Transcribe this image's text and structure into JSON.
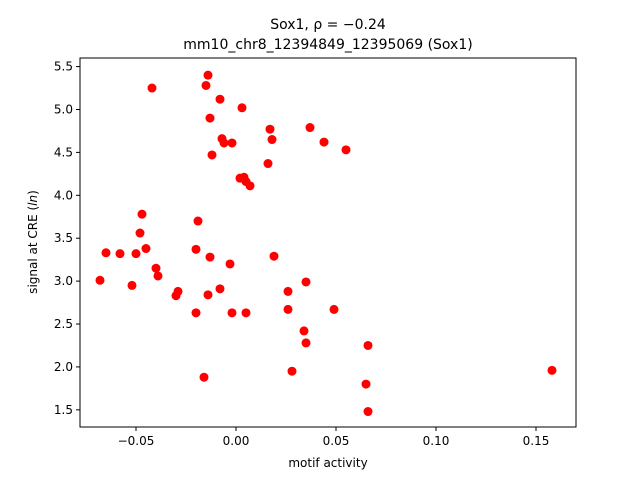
{
  "chart_data": {
    "type": "scatter",
    "title_line1": "Sox1, ρ = −0.24",
    "title_line2": "mm10_chr8_12394849_12395069 (Sox1)",
    "xlabel": "motif activity",
    "ylabel": "signal at CRE (ln)",
    "xlim": [
      -0.078,
      0.17
    ],
    "ylim": [
      1.3,
      5.6
    ],
    "xticks": [
      -0.05,
      0.0,
      0.05,
      0.1,
      0.15
    ],
    "xtick_labels": [
      "−0.05",
      "0.00",
      "0.05",
      "0.10",
      "0.15"
    ],
    "yticks": [
      1.5,
      2.0,
      2.5,
      3.0,
      3.5,
      4.0,
      4.5,
      5.0,
      5.5
    ],
    "ytick_labels": [
      "1.5",
      "2.0",
      "2.5",
      "3.0",
      "3.5",
      "4.0",
      "4.5",
      "5.0",
      "5.5"
    ],
    "grid": false,
    "marker_color": "#ff0000",
    "x": [
      -0.014,
      -0.015,
      -0.042,
      -0.008,
      0.003,
      -0.013,
      0.017,
      0.018,
      0.037,
      0.044,
      -0.007,
      -0.006,
      -0.002,
      0.055,
      -0.012,
      0.016,
      0.002,
      0.004,
      0.005,
      0.007,
      -0.047,
      -0.019,
      -0.048,
      -0.065,
      -0.058,
      -0.045,
      -0.05,
      -0.02,
      -0.013,
      0.019,
      -0.003,
      -0.04,
      -0.039,
      -0.068,
      0.035,
      -0.052,
      -0.029,
      -0.008,
      0.026,
      -0.03,
      -0.014,
      0.026,
      0.049,
      -0.02,
      -0.002,
      0.005,
      0.034,
      0.035,
      0.066,
      0.028,
      0.158,
      0.065,
      -0.016,
      0.066
    ],
    "y": [
      5.4,
      5.28,
      5.25,
      5.12,
      5.02,
      4.9,
      4.77,
      4.65,
      4.79,
      4.62,
      4.66,
      4.61,
      4.61,
      4.53,
      4.47,
      4.37,
      4.2,
      4.21,
      4.16,
      4.11,
      3.78,
      3.7,
      3.56,
      3.33,
      3.32,
      3.38,
      3.32,
      3.37,
      3.28,
      3.29,
      3.2,
      3.15,
      3.06,
      3.01,
      2.99,
      2.95,
      2.88,
      2.91,
      2.88,
      2.83,
      2.84,
      2.67,
      2.67,
      2.63,
      2.63,
      2.63,
      2.42,
      2.28,
      2.25,
      1.95,
      1.96,
      1.8,
      1.88,
      1.48
    ]
  }
}
